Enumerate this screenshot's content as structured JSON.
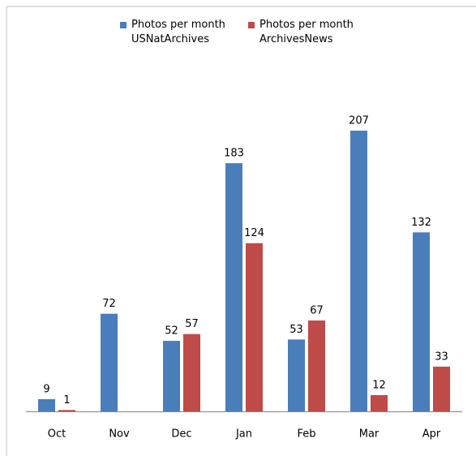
{
  "chart_data": {
    "type": "bar",
    "categories": [
      "Oct",
      "Nov",
      "Dec",
      "Jan",
      "Feb",
      "Mar",
      "Apr"
    ],
    "series": [
      {
        "name": "Photos per month USNatArchives",
        "color": "#4a7ebb",
        "values": [
          9,
          72,
          52,
          183,
          53,
          207,
          132
        ]
      },
      {
        "name": "Photos per month ArchivesNews",
        "color": "#be4b48",
        "values": [
          1,
          null,
          57,
          124,
          67,
          12,
          33
        ]
      }
    ],
    "legend": "top"
  }
}
